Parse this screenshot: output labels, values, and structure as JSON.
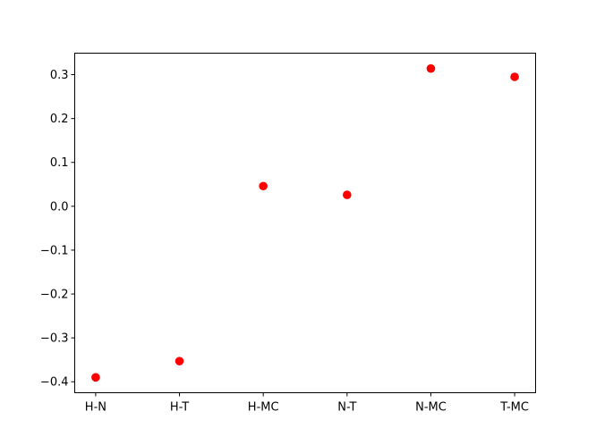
{
  "chart_data": {
    "type": "scatter",
    "title": "",
    "xlabel": "",
    "ylabel": "",
    "categories": [
      "H-N",
      "H-T",
      "H-MC",
      "N-T",
      "N-MC",
      "T-MC"
    ],
    "values": [
      -0.39,
      -0.353,
      0.046,
      0.026,
      0.314,
      0.295
    ],
    "yticks": [
      -0.4,
      -0.3,
      -0.2,
      -0.1,
      0.0,
      0.1,
      0.2,
      0.3
    ],
    "ytick_labels": [
      "−0.4",
      "−0.3",
      "−0.2",
      "−0.1",
      "0.0",
      "0.1",
      "0.2",
      "0.3"
    ],
    "ylim": [
      -0.425,
      0.349
    ],
    "grid": false,
    "marker_color": "#ff0000"
  }
}
